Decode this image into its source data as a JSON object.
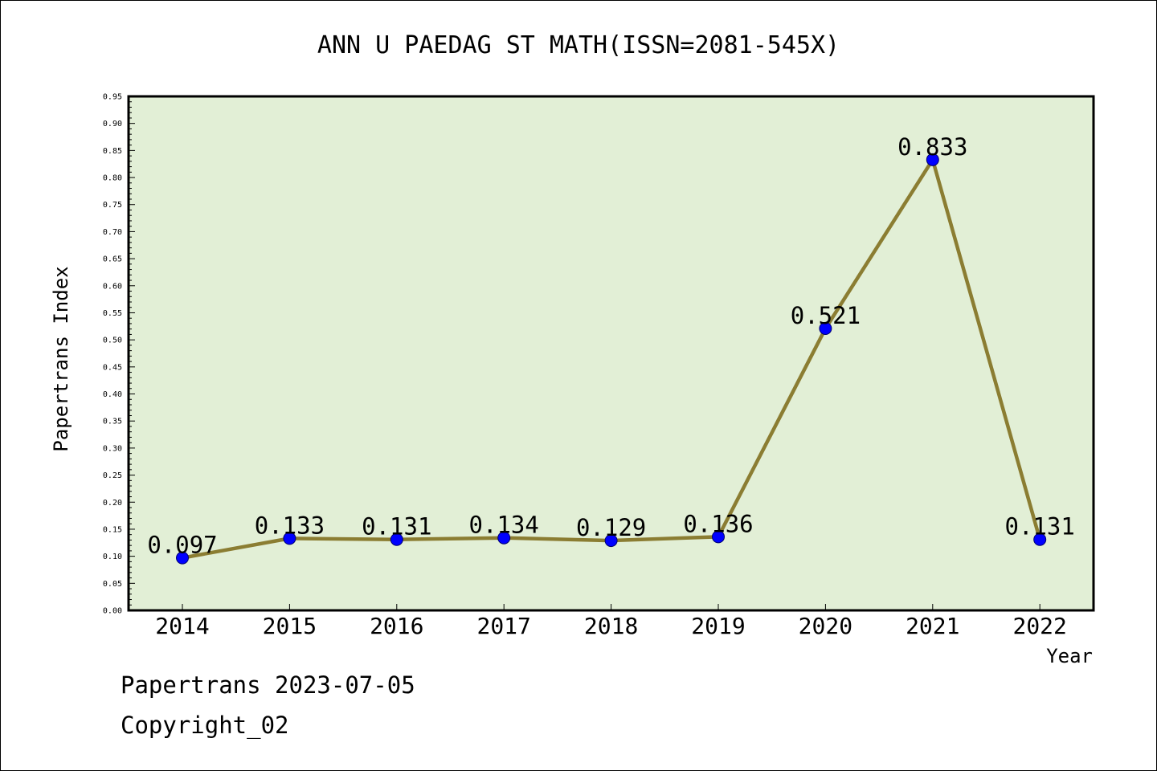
{
  "colors": {
    "plot_bg": "#e2efd6",
    "line": "#8b7d32",
    "marker": "#0000ff",
    "axis": "#000000"
  },
  "chart_data": {
    "type": "line",
    "title": "ANN U PAEDAG ST MATH(ISSN=2081-545X)",
    "xlabel": "Year",
    "ylabel": "Papertrans Index",
    "categories": [
      "2014",
      "2015",
      "2016",
      "2017",
      "2018",
      "2019",
      "2020",
      "2021",
      "2022"
    ],
    "values": [
      0.097,
      0.133,
      0.131,
      0.134,
      0.129,
      0.136,
      0.521,
      0.833,
      0.131
    ],
    "data_labels": [
      "0.097",
      "0.133",
      "0.131",
      "0.134",
      "0.129",
      "0.136",
      "0.521",
      "0.833",
      "0.131"
    ],
    "ylim": [
      0,
      0.95
    ],
    "yticks": [
      "0.00",
      "0.05",
      "0.10",
      "0.15",
      "0.20",
      "0.25",
      "0.30",
      "0.35",
      "0.40",
      "0.45",
      "0.50",
      "0.55",
      "0.60",
      "0.65",
      "0.70",
      "0.75",
      "0.80",
      "0.85",
      "0.90",
      "0.95"
    ],
    "grid": false
  },
  "footer": {
    "source": "Papertrans 2023-07-05",
    "copyright": "Copyright_02"
  }
}
